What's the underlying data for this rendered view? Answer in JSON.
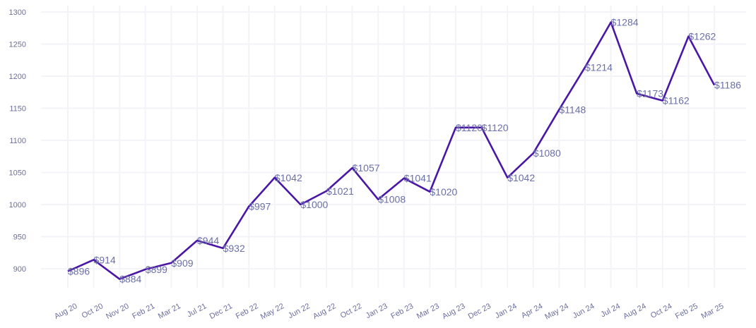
{
  "chart_data": {
    "type": "line",
    "title": "",
    "xlabel": "",
    "ylabel": "",
    "ylim": [
      850,
      1300
    ],
    "yticks": [
      900,
      950,
      1000,
      1050,
      1100,
      1150,
      1200,
      1250,
      1300
    ],
    "grid": true,
    "legend": "none",
    "colors": {
      "line": "#4a16a6",
      "label": "#6a6fa8",
      "tick": "#6b6f9e",
      "grid": "#f3f3f8"
    },
    "categories": [
      "Aug 20",
      "Oct 20",
      "Nov 20",
      "Feb 21",
      "Mar 21",
      "Jul 21",
      "Dec 21",
      "Feb 22",
      "May 22",
      "Jun 22",
      "Aug 22",
      "Oct 22",
      "Jan 23",
      "Feb 23",
      "Mar 23",
      "Aug 23",
      "Dec 23",
      "Jan 24",
      "Apr 24",
      "May 24",
      "Jun 24",
      "Jul 24",
      "Aug 24",
      "Oct 24",
      "Feb 25",
      "Mar 25"
    ],
    "series": [
      {
        "values": [
          896,
          914,
          884,
          899,
          909,
          944,
          932,
          997,
          1042,
          1000,
          1021,
          1057,
          1008,
          1041,
          1020,
          1120,
          1120,
          1042,
          1080,
          1148,
          1214,
          1284,
          1173,
          1162,
          1262,
          1186
        ],
        "labels": [
          "$896",
          "$914",
          "$884",
          "$899",
          "$909",
          "$944",
          "$932",
          "$997",
          "$1042",
          "$1000",
          "$1021",
          "$1057",
          "$1008",
          "$1041",
          "$1020",
          "$1120",
          "$1120",
          "$1042",
          "$1080",
          "$1148",
          "$1214",
          "$1284",
          "$1173",
          "$1162",
          "$1262",
          "$1186"
        ]
      }
    ]
  }
}
